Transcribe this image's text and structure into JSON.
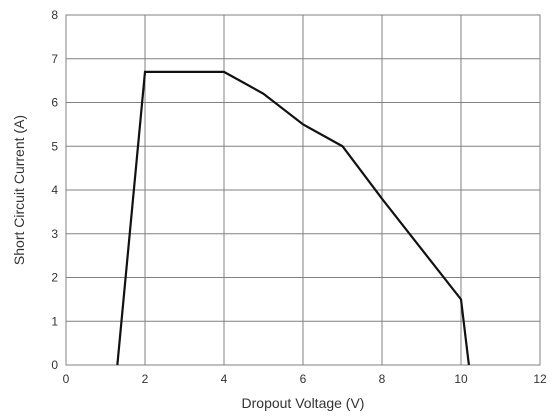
{
  "chart_data": {
    "type": "line",
    "title": "",
    "xlabel": "Dropout Voltage (V)",
    "ylabel": "Short Circuit Current (A)",
    "xlim": [
      0,
      12
    ],
    "ylim": [
      0,
      8
    ],
    "xticks": [
      0,
      2,
      4,
      6,
      8,
      10,
      12
    ],
    "yticks": [
      0,
      1,
      2,
      3,
      4,
      5,
      6,
      7,
      8
    ],
    "grid": true,
    "legend": "none",
    "series": [
      {
        "color": "#111111",
        "x": [
          1.3,
          2.0,
          4.0,
          5.0,
          6.0,
          7.0,
          8.0,
          10.0,
          10.2
        ],
        "y": [
          0.0,
          6.7,
          6.7,
          6.2,
          5.5,
          5.0,
          3.8,
          1.5,
          0.0
        ]
      }
    ]
  }
}
